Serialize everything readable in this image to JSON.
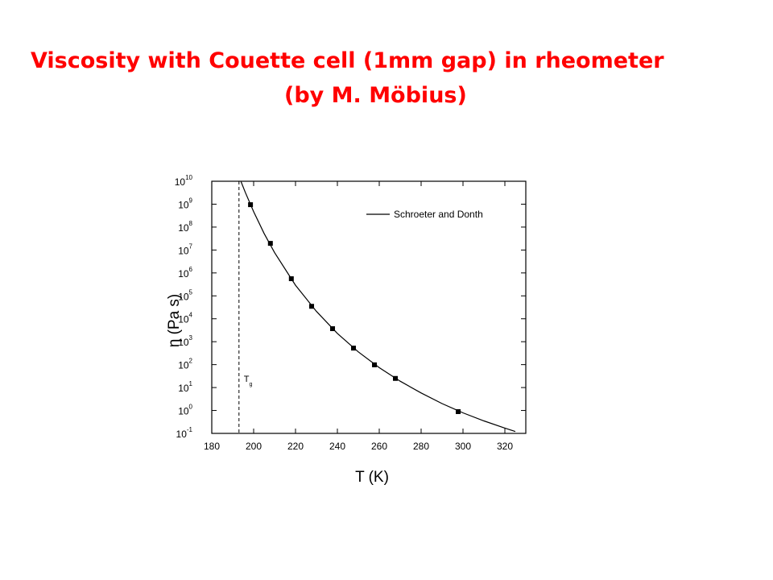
{
  "chart_data": {
    "type": "line",
    "title": "Viscosity with Couette cell (1mm gap) in rheometer",
    "subtitle": "(by M. Möbius)",
    "x_label": "T (K)",
    "y_label": "η  (Pa s)",
    "log_y": true,
    "xlim": [
      180,
      330
    ],
    "ylim": [
      0.1,
      10000000000
    ],
    "xticks": [
      180,
      200,
      220,
      240,
      260,
      280,
      300,
      320
    ],
    "yticks": [
      {
        "value": 0.1,
        "label": "10",
        "sup": "-1"
      },
      {
        "value": 1,
        "label": "10",
        "sup": "0"
      },
      {
        "value": 10,
        "label": "10",
        "sup": "1"
      },
      {
        "value": 100,
        "label": "10",
        "sup": "2"
      },
      {
        "value": 1000,
        "label": "10",
        "sup": "3"
      },
      {
        "value": 10000,
        "label": "10",
        "sup": "4"
      },
      {
        "value": 100000,
        "label": "10",
        "sup": "5"
      },
      {
        "value": 1000000,
        "label": "10",
        "sup": "6"
      },
      {
        "value": 10000000,
        "label": "10",
        "sup": "7"
      },
      {
        "value": 100000000,
        "label": "10",
        "sup": "8"
      },
      {
        "value": 1000000000,
        "label": "10",
        "sup": "9"
      },
      {
        "value": 10000000000,
        "label": "10",
        "sup": "10"
      }
    ],
    "legend": "top-right",
    "series": [
      {
        "name": "Schroeter and Donth",
        "kind": "line",
        "color": "#000000",
        "x": [
          194,
          196,
          200,
          205,
          210,
          220,
          230,
          240,
          250,
          260,
          270,
          280,
          290,
          300,
          310,
          320,
          325
        ],
        "values": [
          9500000000,
          3300000000,
          470000000,
          53000000,
          7700000,
          290000,
          21000,
          2300,
          360,
          74,
          19,
          5.8,
          2.0,
          0.79,
          0.35,
          0.17,
          0.12
        ]
      },
      {
        "kind": "scatter",
        "color": "#000000",
        "x": [
          198.5,
          208,
          218,
          227.7,
          237.7,
          247.7,
          257.7,
          267.7,
          297.7
        ],
        "values": [
          950000000,
          19500000,
          560000,
          35000,
          3700,
          525,
          98,
          25,
          0.89
        ]
      }
    ],
    "vlines": [
      {
        "x": 193,
        "label": "T",
        "sub": "g"
      }
    ]
  }
}
